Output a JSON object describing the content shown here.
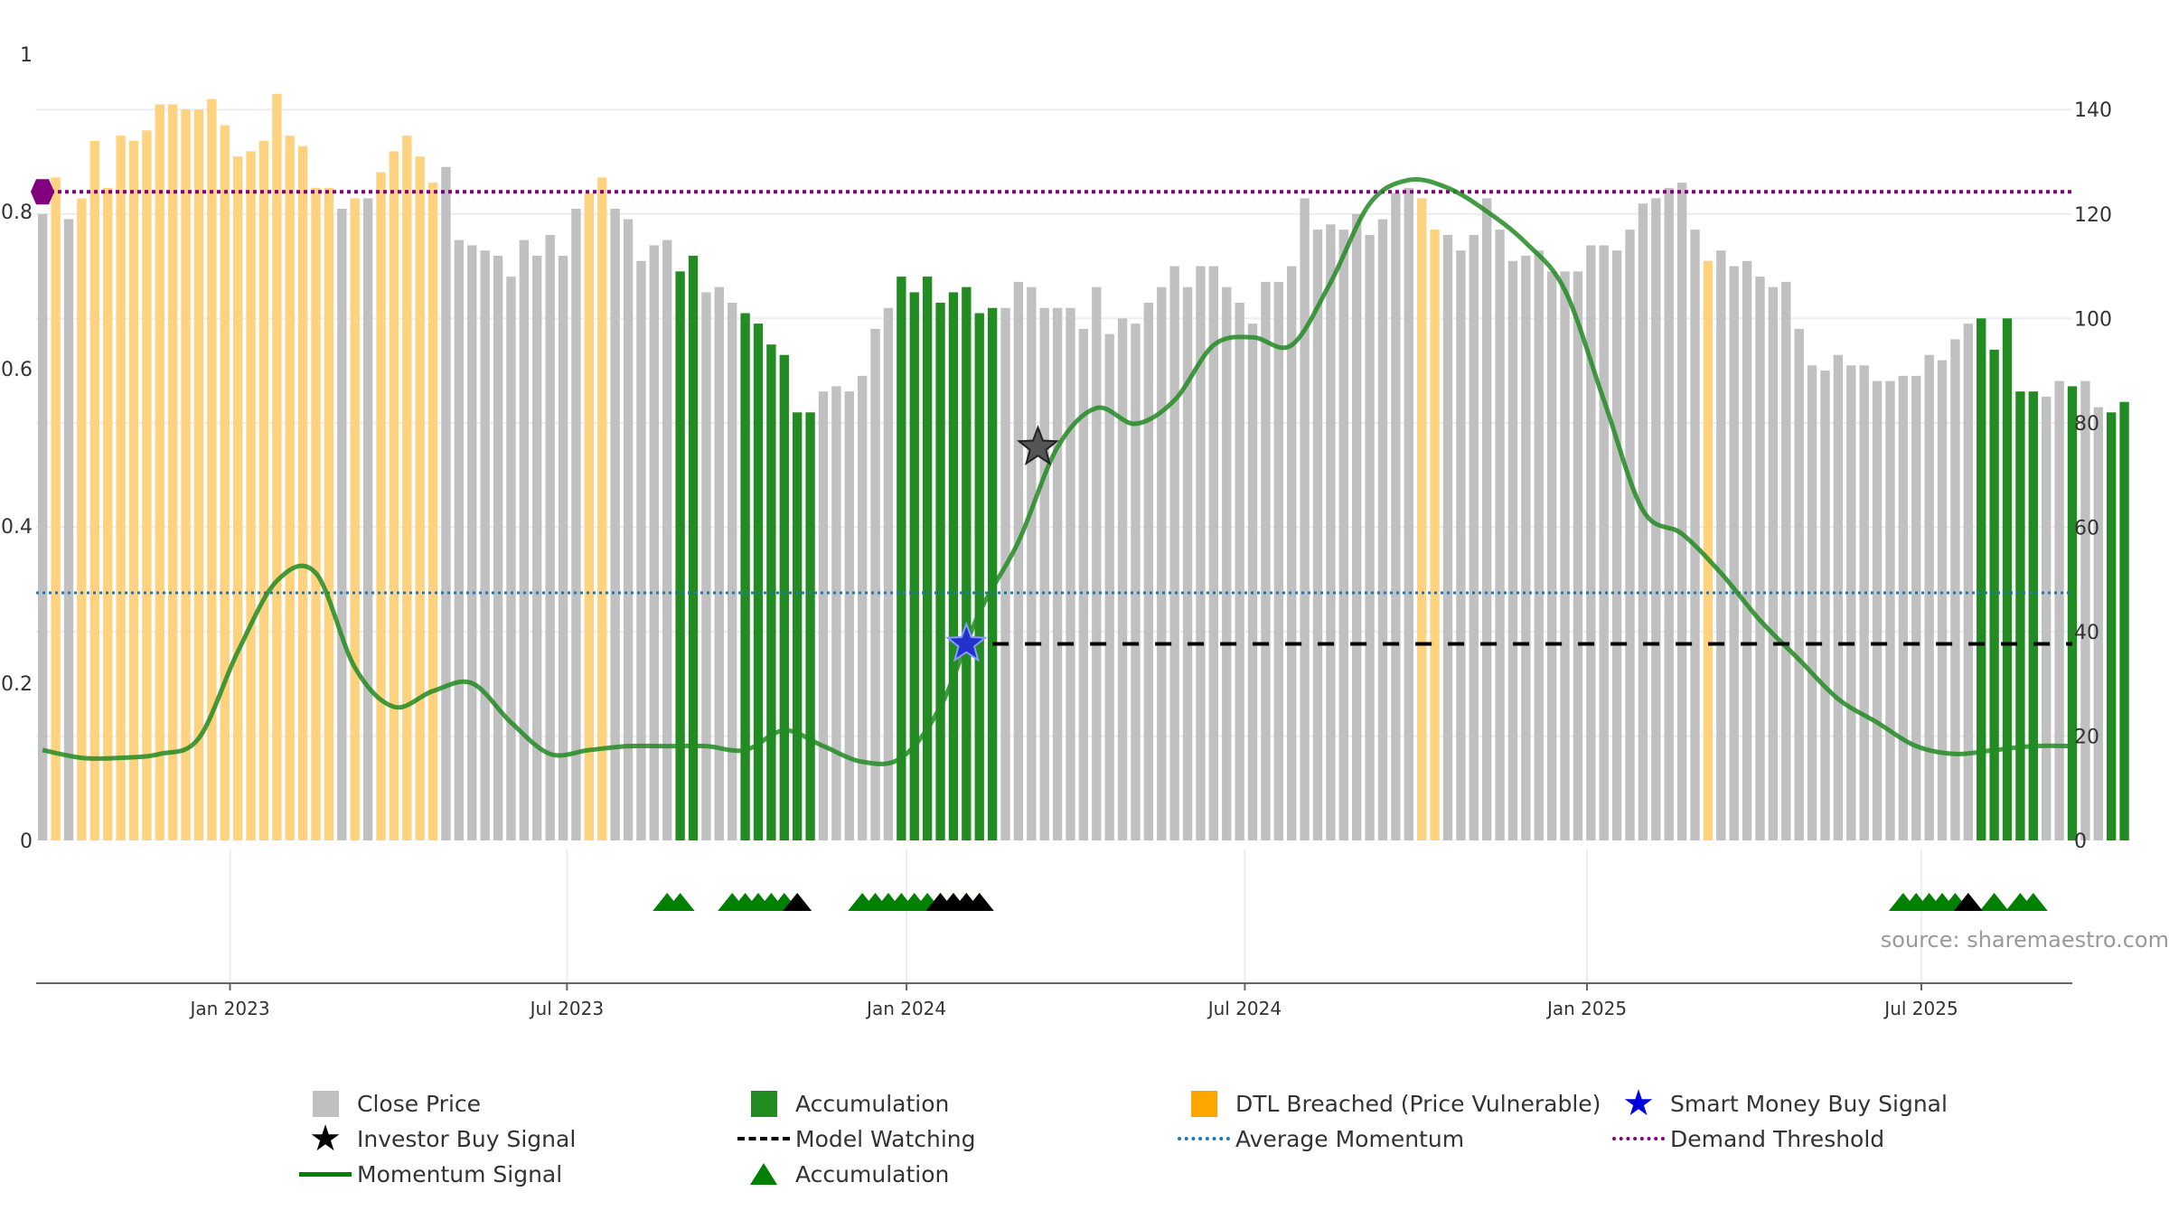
{
  "chart_data": {
    "type": "bar",
    "colors": {
      "close_price": "#c0c0c0",
      "accumulation": "#228b22",
      "dtl_breached": "#ffd27f",
      "momentum": "#228b22",
      "average_momentum": "#1f77b4",
      "demand_threshold": "#800080",
      "model_watching": "#000000",
      "investor_signal": "#555555",
      "smart_money": "#2233cc"
    },
    "left_axis": {
      "range": [
        0,
        1
      ],
      "ticks": [
        "0",
        "0.2",
        "0.4",
        "0.6",
        "0.8",
        "1"
      ],
      "tick_values": [
        0,
        0.2,
        0.4,
        0.6,
        0.8,
        1
      ]
    },
    "right_axis": {
      "range": [
        0,
        150.6
      ],
      "ticks": [
        "0",
        "20",
        "40",
        "60",
        "80",
        "100",
        "120",
        "140"
      ],
      "tick_values": [
        0,
        20,
        40,
        60,
        80,
        100,
        120,
        140
      ]
    },
    "x_axis": {
      "unit": "weeks since 2022-10-03",
      "range": [
        -0.5,
        156
      ],
      "ticks": [
        "Jan 2023",
        "Jul 2023",
        "Jan 2024",
        "Jul 2024",
        "Jan 2025",
        "Jul 2025"
      ],
      "tick_positions": [
        14.4,
        40.3,
        66.4,
        92.4,
        118.7,
        144.4
      ]
    },
    "bars": {
      "values": [
        120,
        127,
        119,
        123,
        134,
        125,
        135,
        134,
        136,
        141,
        141,
        140,
        140,
        142,
        137,
        131,
        132,
        134,
        143,
        135,
        133,
        125,
        125,
        121,
        123,
        123,
        128,
        132,
        135,
        131,
        126,
        129,
        115,
        114,
        113,
        112,
        108,
        115,
        112,
        116,
        112,
        121,
        124,
        127,
        121,
        119,
        111,
        114,
        115,
        109,
        112,
        105,
        106,
        103,
        101,
        99,
        95,
        93,
        82,
        82,
        86,
        87,
        86,
        89,
        98,
        102,
        108,
        105,
        108,
        103,
        105,
        106,
        101,
        102,
        102,
        107,
        106,
        102,
        102,
        102,
        98,
        106,
        97,
        100,
        99,
        103,
        106,
        110,
        106,
        110,
        110,
        106,
        103,
        99,
        107,
        107,
        110,
        123,
        117,
        118,
        117,
        120,
        116,
        119,
        124,
        125,
        123,
        117,
        116,
        113,
        116,
        123,
        117,
        111,
        112,
        113,
        109,
        109,
        109,
        114,
        114,
        113,
        117,
        122,
        123,
        125,
        126,
        117,
        111,
        113,
        110,
        111,
        108,
        106,
        107,
        98,
        91,
        90,
        93,
        91,
        91,
        88,
        88,
        89,
        89,
        93,
        92,
        96,
        99,
        100,
        94,
        100,
        86,
        86,
        85,
        88,
        87,
        88,
        83,
        82,
        84
      ],
      "types": [
        "g",
        "y",
        "g",
        "y",
        "y",
        "y",
        "y",
        "y",
        "y",
        "y",
        "y",
        "y",
        "y",
        "y",
        "y",
        "y",
        "y",
        "y",
        "y",
        "y",
        "y",
        "y",
        "y",
        "g",
        "y",
        "g",
        "y",
        "y",
        "y",
        "y",
        "y",
        "g",
        "g",
        "g",
        "g",
        "g",
        "g",
        "g",
        "g",
        "g",
        "g",
        "g",
        "y",
        "y",
        "g",
        "g",
        "g",
        "g",
        "g",
        "a",
        "a",
        "g",
        "g",
        "g",
        "a",
        "a",
        "a",
        "a",
        "a",
        "a",
        "g",
        "g",
        "g",
        "g",
        "g",
        "g",
        "a",
        "a",
        "a",
        "a",
        "a",
        "a",
        "a",
        "a",
        "g",
        "g",
        "g",
        "g",
        "g",
        "g",
        "g",
        "g",
        "g",
        "g",
        "g",
        "g",
        "g",
        "g",
        "g",
        "g",
        "g",
        "g",
        "g",
        "g",
        "g",
        "g",
        "g",
        "g",
        "g",
        "g",
        "g",
        "g",
        "g",
        "g",
        "g",
        "g",
        "y",
        "y",
        "g",
        "g",
        "g",
        "g",
        "g",
        "g",
        "g",
        "g",
        "g",
        "g",
        "g",
        "g",
        "g",
        "g",
        "g",
        "g",
        "g",
        "g",
        "g",
        "g",
        "y",
        "g",
        "g",
        "g",
        "g",
        "g",
        "g",
        "g",
        "g",
        "g",
        "g",
        "g",
        "g",
        "g",
        "g",
        "g",
        "g",
        "g",
        "g",
        "g",
        "g",
        "a",
        "a",
        "a",
        "a",
        "a",
        "g",
        "g",
        "a",
        "g",
        "g",
        "a",
        "a"
      ]
    },
    "momentum": {
      "x": [
        0,
        3,
        6,
        9,
        12,
        15,
        18,
        21,
        24,
        27,
        30,
        33,
        36,
        39,
        42,
        45,
        48,
        51,
        54,
        57,
        60,
        63,
        66,
        69,
        72,
        75,
        78,
        81,
        84,
        87,
        90,
        93,
        96,
        99,
        102,
        105,
        108,
        111,
        114,
        117,
        120,
        123,
        126,
        129,
        132,
        135,
        138,
        141,
        144,
        147,
        150,
        153,
        156
      ],
      "y": [
        0.115,
        0.105,
        0.105,
        0.11,
        0.13,
        0.24,
        0.33,
        0.34,
        0.22,
        0.17,
        0.19,
        0.2,
        0.15,
        0.11,
        0.115,
        0.12,
        0.12,
        0.12,
        0.115,
        0.14,
        0.12,
        0.1,
        0.105,
        0.17,
        0.29,
        0.38,
        0.5,
        0.55,
        0.53,
        0.56,
        0.63,
        0.64,
        0.63,
        0.71,
        0.81,
        0.84,
        0.83,
        0.8,
        0.76,
        0.7,
        0.56,
        0.42,
        0.39,
        0.34,
        0.28,
        0.23,
        0.18,
        0.15,
        0.12,
        0.11,
        0.115,
        0.12,
        0.12
      ]
    },
    "average_momentum": 0.315,
    "demand_threshold": 0.825,
    "model_watching": {
      "x_start": 73,
      "x_end": 156,
      "y": 0.25
    },
    "investor_buy_signal": {
      "x": 76.5,
      "y": 0.5
    },
    "smart_money_buy_signal": {
      "x": 71,
      "y": 0.25
    },
    "accumulation_markers": [
      48,
      49,
      53,
      54,
      55,
      56,
      57,
      63,
      64,
      65,
      66,
      67,
      68,
      69,
      70,
      71,
      72,
      143,
      144,
      145,
      146,
      147,
      150,
      152,
      153
    ],
    "investor_buy_markers": [
      58,
      69,
      70,
      71,
      72,
      148
    ],
    "source": "source: sharemaestro.com"
  },
  "legend": [
    {
      "label": "Close Price",
      "symbol": "gray-square-icon"
    },
    {
      "label": "Accumulation",
      "symbol": "green-square-icon"
    },
    {
      "label": "DTL Breached (Price Vulnerable)",
      "symbol": "orange-square-icon"
    },
    {
      "label": "Smart Money Buy Signal",
      "symbol": "blue-star-icon"
    },
    {
      "label": "Investor Buy Signal",
      "symbol": "black-star-icon"
    },
    {
      "label": "Model Watching",
      "symbol": "black-dash-icon"
    },
    {
      "label": "Average Momentum",
      "symbol": "blue-dotted-line-icon"
    },
    {
      "label": "Demand Threshold",
      "symbol": "purple-dotted-line-icon"
    },
    {
      "label": "Momentum Signal",
      "symbol": "green-line-icon"
    },
    {
      "label": "Accumulation",
      "symbol": "green-triangle-icon"
    }
  ]
}
